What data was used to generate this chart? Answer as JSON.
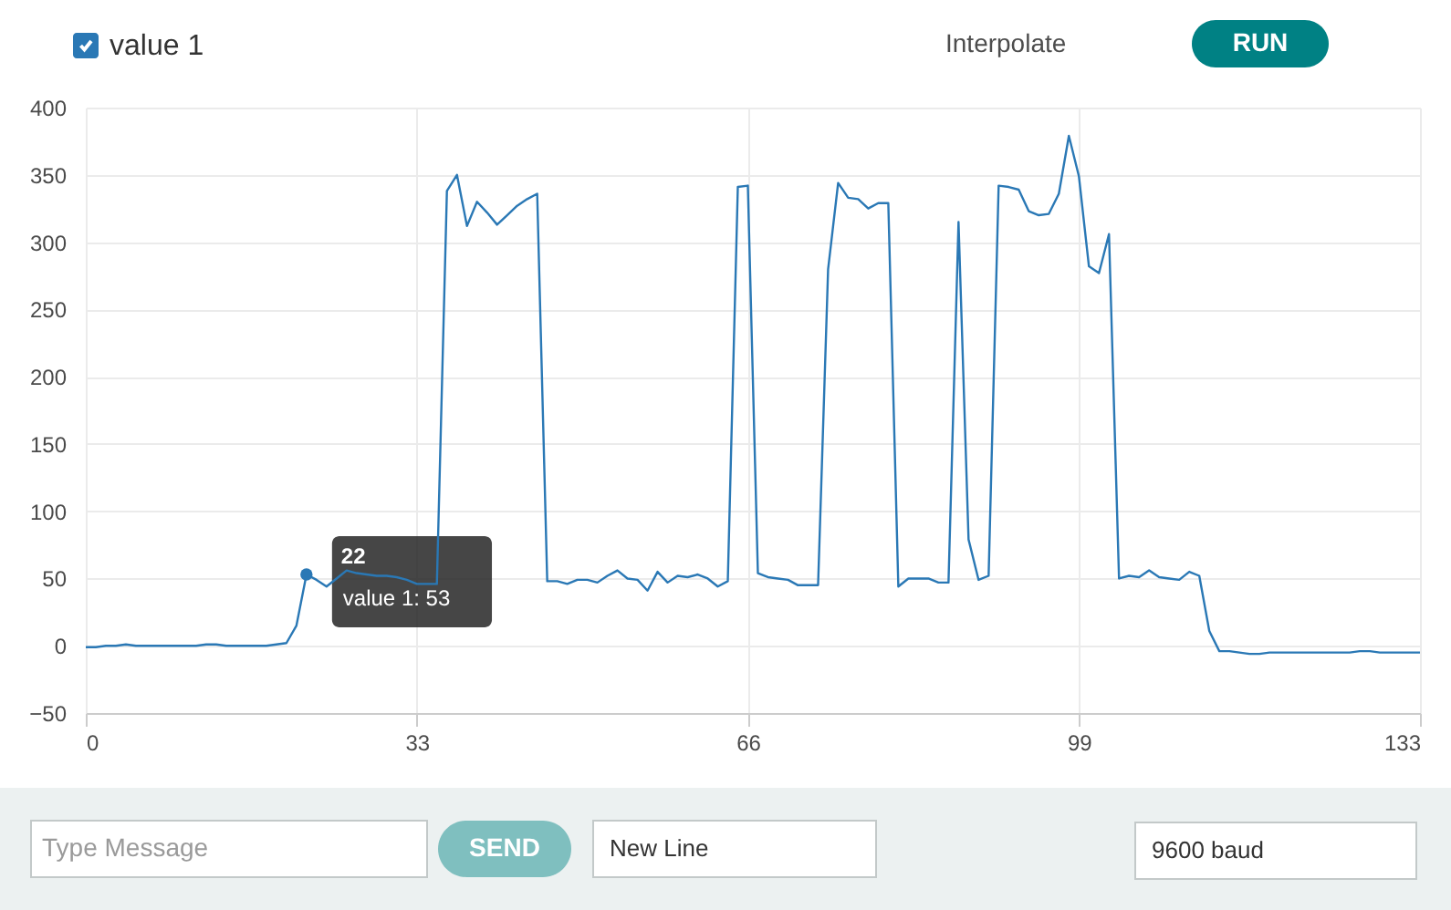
{
  "chart_data": {
    "type": "line",
    "x": [
      0,
      1,
      2,
      3,
      4,
      5,
      6,
      7,
      8,
      9,
      10,
      11,
      12,
      13,
      14,
      15,
      16,
      17,
      18,
      19,
      20,
      21,
      22,
      23,
      24,
      25,
      26,
      27,
      28,
      29,
      30,
      31,
      32,
      33,
      34,
      35,
      36,
      37,
      38,
      39,
      40,
      41,
      42,
      43,
      44,
      45,
      46,
      47,
      48,
      49,
      50,
      51,
      52,
      53,
      54,
      55,
      56,
      57,
      58,
      59,
      60,
      61,
      62,
      63,
      64,
      65,
      66,
      67,
      68,
      69,
      70,
      71,
      72,
      73,
      74,
      75,
      76,
      77,
      78,
      79,
      80,
      81,
      82,
      83,
      84,
      85,
      86,
      87,
      88,
      89,
      90,
      91,
      92,
      93,
      94,
      95,
      96,
      97,
      98,
      99,
      100,
      101,
      102,
      103,
      104,
      105,
      106,
      107,
      108,
      109,
      110,
      111,
      112,
      113,
      114,
      115,
      116,
      117,
      118,
      119,
      120,
      121,
      122,
      123,
      124,
      125,
      126,
      127,
      128,
      129,
      130,
      131,
      132,
      133
    ],
    "series": [
      {
        "name": "value 1",
        "color": "#2a78b5",
        "values": [
          -1,
          -1,
          0,
          0,
          1,
          0,
          0,
          0,
          0,
          0,
          0,
          0,
          1,
          1,
          0,
          0,
          0,
          0,
          0,
          1,
          2,
          15,
          53,
          49,
          44,
          50,
          56,
          54,
          53,
          52,
          52,
          51,
          49,
          46,
          46,
          46,
          338,
          350,
          312,
          330,
          322,
          313,
          320,
          327,
          332,
          336,
          48,
          48,
          46,
          49,
          49,
          47,
          52,
          56,
          50,
          49,
          41,
          55,
          47,
          52,
          51,
          53,
          50,
          44,
          48,
          341,
          342,
          54,
          51,
          50,
          49,
          45,
          45,
          45,
          280,
          344,
          333,
          332,
          325,
          329,
          329,
          44,
          50,
          50,
          50,
          47,
          47,
          315,
          79,
          49,
          52,
          342,
          341,
          339,
          323,
          320,
          321,
          336,
          379,
          349,
          282,
          277,
          306,
          50,
          52,
          51,
          56,
          51,
          50,
          49,
          55,
          52,
          11,
          -4,
          -4,
          -5,
          -6,
          -6,
          -5,
          -5,
          -5,
          -5,
          -5,
          -5,
          -5,
          -5,
          -5,
          -4,
          -4,
          -5,
          -5,
          -5,
          -5,
          -5
        ]
      }
    ],
    "xlim": [
      0,
      133
    ],
    "xticks": [
      0,
      33,
      66,
      99,
      133
    ],
    "ylim": [
      -50,
      400
    ],
    "yticks": [
      -50,
      0,
      50,
      100,
      150,
      200,
      250,
      300,
      350,
      400
    ],
    "grid": true,
    "legend": "top left",
    "annotations": [
      "Interpolate",
      "RUN",
      "Type Message",
      "SEND",
      "New Line",
      "9600 baud",
      {
        "text": "22",
        "x": 22,
        "y": 53
      },
      {
        "text": "value 1: 53",
        "x": 22,
        "y": 53
      }
    ]
  }
}
